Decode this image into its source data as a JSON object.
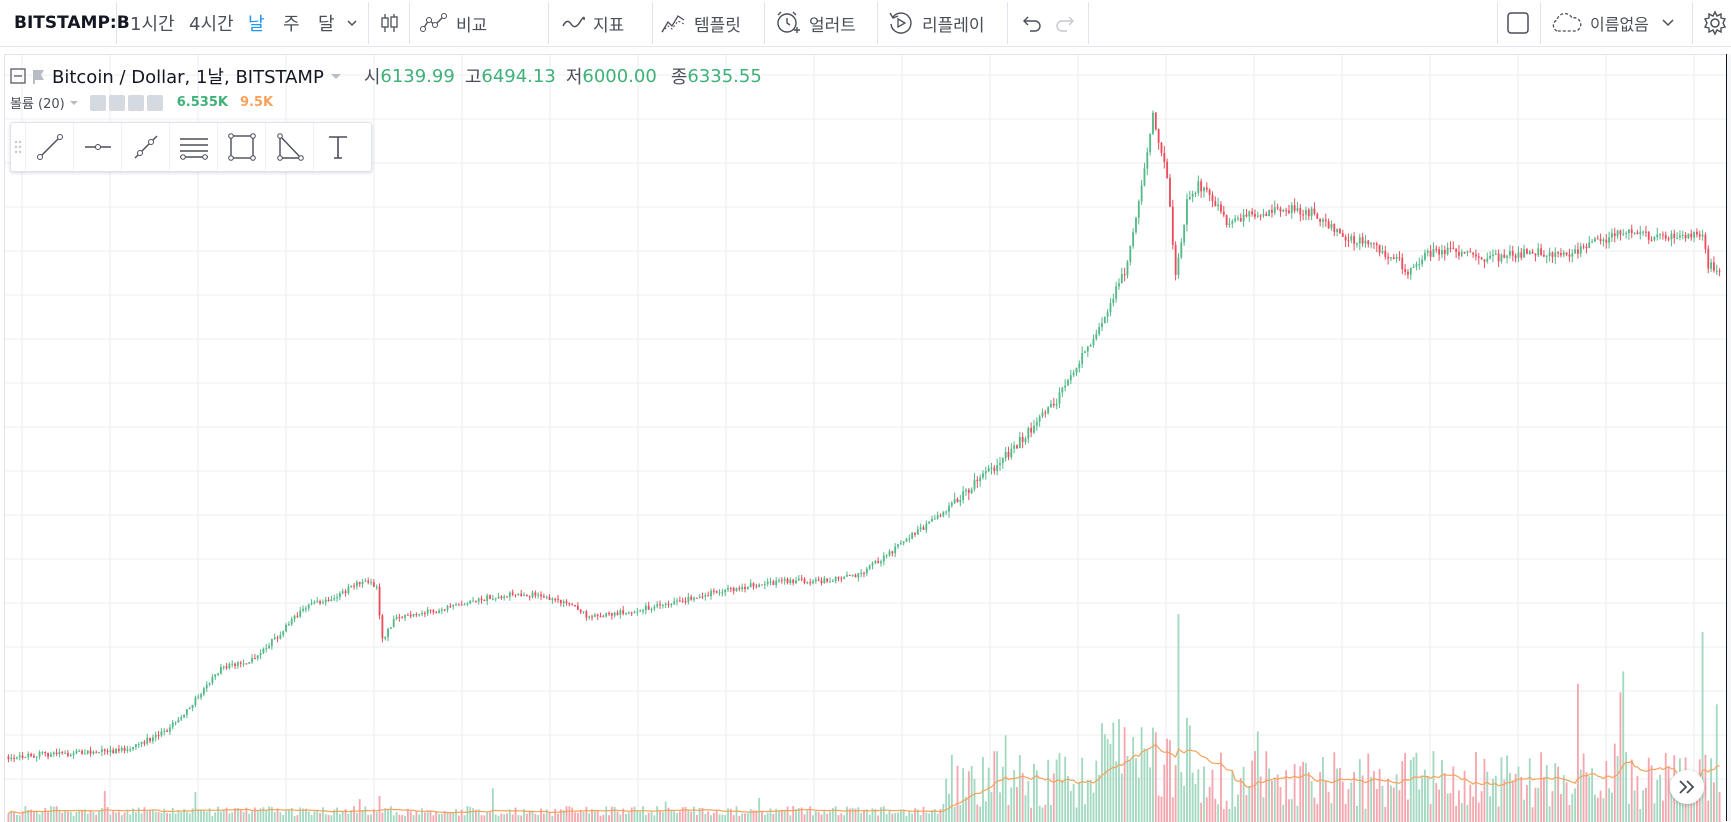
{
  "toolbar": {
    "symbol": "BITSTAMP:B",
    "intervals": [
      "1시간",
      "4시간",
      "날",
      "주",
      "달"
    ],
    "active_interval": "날",
    "compare_label": "비교",
    "indicators_label": "지표",
    "templates_label": "템플릿",
    "alert_label": "얼러트",
    "replay_label": "리플레이",
    "layout_name": "이름없음"
  },
  "legend": {
    "title": "Bitcoin / Dollar, 1날, BITSTAMP",
    "open_key": "시",
    "open": "6139.99",
    "high_key": "고",
    "high": "6494.13",
    "low_key": "저",
    "low": "6000.00",
    "close_key": "종",
    "close": "6335.55"
  },
  "volume_legend": {
    "name": "볼륨 (20)",
    "value": "6.535K",
    "ma": "9.5K"
  },
  "drawing_tools": [
    "trend-line",
    "horizontal-ray",
    "ray",
    "parallel-channel",
    "rectangle",
    "triangle",
    "text"
  ],
  "colors": {
    "up": "#53b987",
    "down": "#eb4d5c",
    "vol_up": "#a3d9c0",
    "vol_down": "#f4a7ae",
    "vol_ma": "#f6a25b",
    "grid": "#e8edf2"
  },
  "chart_data": {
    "type": "candlestick",
    "instrument": "Bitcoin / Dollar",
    "timeframe": "1날",
    "exchange": "BITSTAMP",
    "y_scale": "log",
    "grid": true,
    "price_anchors": [
      [
        0,
        230
      ],
      [
        20,
        235
      ],
      [
        40,
        240
      ],
      [
        55,
        270
      ],
      [
        65,
        330
      ],
      [
        75,
        420
      ],
      [
        85,
        440
      ],
      [
        95,
        520
      ],
      [
        105,
        640
      ],
      [
        115,
        680
      ],
      [
        125,
        760
      ],
      [
        130,
        730
      ],
      [
        132,
        510
      ],
      [
        136,
        580
      ],
      [
        140,
        600
      ],
      [
        150,
        620
      ],
      [
        160,
        640
      ],
      [
        170,
        680
      ],
      [
        180,
        700
      ],
      [
        190,
        680
      ],
      [
        200,
        640
      ],
      [
        205,
        590
      ],
      [
        215,
        610
      ],
      [
        230,
        640
      ],
      [
        245,
        690
      ],
      [
        260,
        730
      ],
      [
        275,
        760
      ],
      [
        290,
        760
      ],
      [
        300,
        790
      ],
      [
        310,
        900
      ],
      [
        320,
        1050
      ],
      [
        330,
        1200
      ],
      [
        340,
        1450
      ],
      [
        350,
        1700
      ],
      [
        360,
        2100
      ],
      [
        370,
        2600
      ],
      [
        380,
        3600
      ],
      [
        388,
        4800
      ],
      [
        395,
        6500
      ],
      [
        400,
        11000
      ],
      [
        404,
        18000
      ],
      [
        406,
        15000
      ],
      [
        409,
        12000
      ],
      [
        412,
        6000
      ],
      [
        416,
        10000
      ],
      [
        420,
        11200
      ],
      [
        426,
        10000
      ],
      [
        430,
        8800
      ],
      [
        440,
        9200
      ],
      [
        450,
        9600
      ],
      [
        460,
        9300
      ],
      [
        470,
        8000
      ],
      [
        480,
        7500
      ],
      [
        490,
        6800
      ],
      [
        494,
        6200
      ],
      [
        500,
        7000
      ],
      [
        510,
        7200
      ],
      [
        520,
        6700
      ],
      [
        530,
        7000
      ],
      [
        540,
        7100
      ],
      [
        550,
        7000
      ],
      [
        560,
        7600
      ],
      [
        570,
        8100
      ],
      [
        580,
        7900
      ],
      [
        590,
        8000
      ],
      [
        598,
        8000
      ],
      [
        600,
        6500
      ],
      [
        604,
        6300
      ]
    ],
    "volume_ma": "20"
  }
}
